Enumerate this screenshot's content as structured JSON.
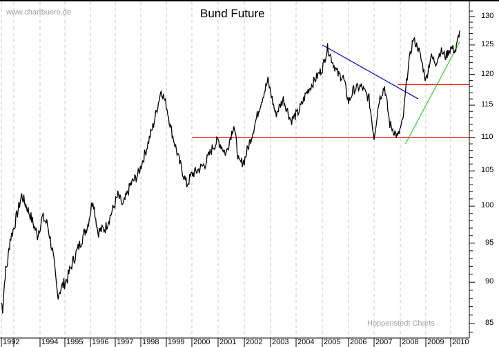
{
  "header": {
    "watermark": "www.chartbuero.de",
    "title": "Bund Future",
    "credit": "Hoppenstedt Charts"
  },
  "colors": {
    "price": "#000000",
    "support_resistance": "#ee0000",
    "downtrend": "#0000cc",
    "uptrend": "#33cc33",
    "grid": "#c8c8c8"
  },
  "chart_data": {
    "type": "line",
    "title": "Bund Future",
    "xlabel": "",
    "ylabel": "",
    "ylim": [
      84,
      131
    ],
    "y_scale": "log",
    "y_ticks": [
      85,
      90,
      95,
      100,
      105,
      110,
      115,
      120,
      125,
      130
    ],
    "x_tick_labels": [
      "1992",
      "1994",
      "1995",
      "1996",
      "1997",
      "1998",
      "1999",
      "2000",
      "2001",
      "2002",
      "2003",
      "2004",
      "2005",
      "2006",
      "2007",
      "2008",
      "2009",
      "2010"
    ],
    "grid": "vertical dashed",
    "legend": "none",
    "series": [
      {
        "name": "Bund Future",
        "x": [
          1992.0,
          1992.1,
          1992.3,
          1992.5,
          1992.7,
          1993.0,
          1993.3,
          1993.6,
          1993.9,
          1994.1,
          1994.3,
          1994.5,
          1994.7,
          1994.9,
          1995.1,
          1995.3,
          1995.6,
          1995.9,
          1996.1,
          1996.3,
          1996.6,
          1996.9,
          1997.1,
          1997.3,
          1997.6,
          1997.9,
          1998.2,
          1998.5,
          1998.8,
          1999.0,
          1999.2,
          1999.5,
          1999.8,
          2000.0,
          2000.2,
          2000.5,
          2000.8,
          2001.0,
          2001.3,
          2001.6,
          2001.8,
          2002.0,
          2002.3,
          2002.6,
          2002.9,
          2003.2,
          2003.5,
          2003.8,
          2004.1,
          2004.4,
          2004.7,
          2005.0,
          2005.2,
          2005.4,
          2005.6,
          2005.8,
          2006.0,
          2006.2,
          2006.5,
          2006.8,
          2007.0,
          2007.2,
          2007.4,
          2007.6,
          2007.9,
          2008.1,
          2008.3,
          2008.5,
          2008.7,
          2008.9,
          2009.0,
          2009.2,
          2009.4,
          2009.6,
          2009.8,
          2010.0,
          2010.2,
          2010.35
        ],
        "values": [
          87.5,
          86.8,
          91.0,
          92.5,
          95.5,
          97.0,
          101.5,
          99.0,
          96.0,
          98.5,
          97.5,
          94.0,
          88.5,
          89.5,
          90.5,
          92.5,
          95.0,
          97.5,
          101.0,
          96.5,
          97.0,
          99.5,
          101.5,
          100.0,
          103.0,
          104.5,
          108.0,
          112.0,
          117.5,
          115.0,
          111.0,
          106.5,
          103.0,
          104.5,
          105.0,
          106.0,
          108.5,
          109.5,
          107.5,
          112.0,
          106.0,
          106.5,
          110.5,
          115.0,
          119.0,
          113.5,
          116.0,
          112.5,
          114.0,
          117.0,
          119.0,
          121.0,
          124.5,
          122.0,
          120.0,
          119.5,
          115.5,
          117.5,
          118.0,
          116.0,
          110.0,
          116.0,
          118.0,
          112.0,
          110.0,
          112.5,
          121.0,
          126.0,
          124.5,
          121.0,
          119.0,
          123.0,
          122.0,
          124.0,
          123.0,
          124.5,
          124.0,
          127.5
        ]
      },
      {
        "name": "Support 110",
        "type": "hline",
        "value": 110,
        "x_start": 2000.0,
        "x_end": 2010.5
      },
      {
        "name": "Resistance 118",
        "type": "hline",
        "value": 118.3,
        "x_start": 2007.9,
        "x_end": 2010.5
      },
      {
        "name": "Downtrend",
        "type": "segment",
        "x": [
          2005.0,
          2008.7
        ],
        "values": [
          125.0,
          116.0
        ]
      },
      {
        "name": "Uptrend",
        "type": "segment",
        "x": [
          2008.2,
          2010.35
        ],
        "values": [
          109.0,
          125.5
        ]
      }
    ]
  }
}
